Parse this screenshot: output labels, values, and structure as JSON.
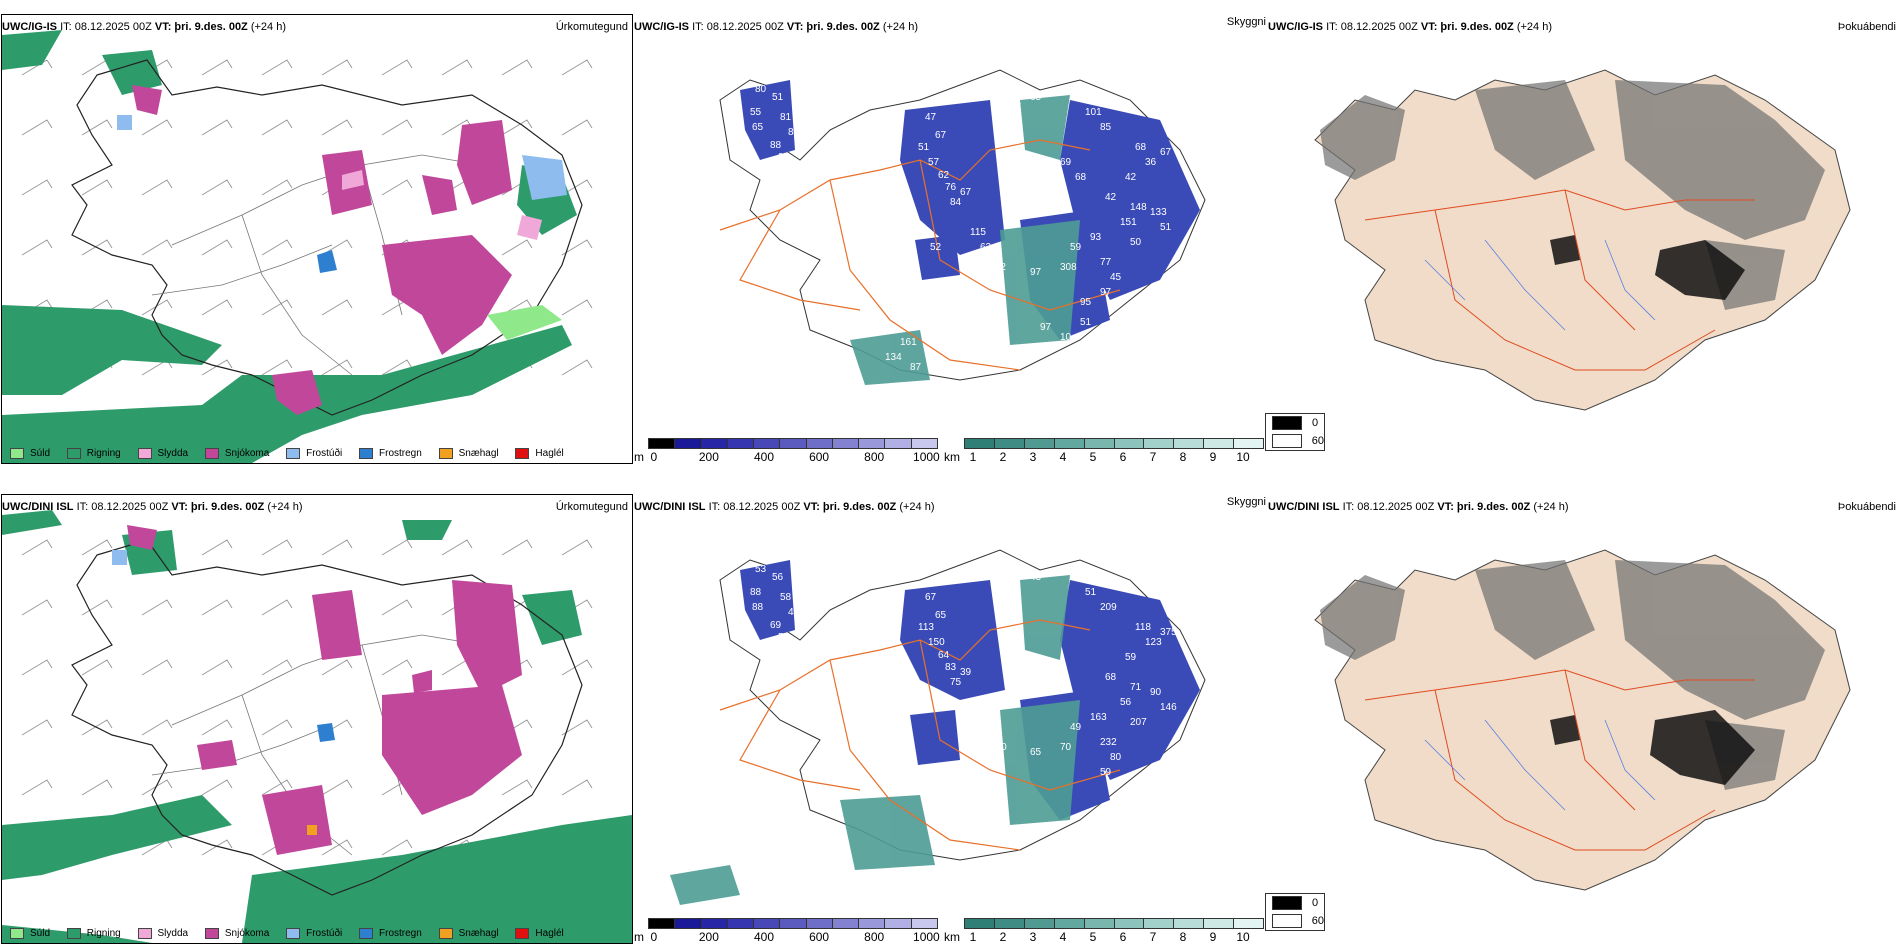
{
  "colors": {
    "rain": "#2e9b6b",
    "drizzle": "#8fe88a",
    "sleet": "#f0a8d8",
    "snow": "#c0479a",
    "frost_drizzle": "#8fbcee",
    "frost_rain": "#2f7fd0",
    "snow_pellets": "#f2a020",
    "hail": "#e01010",
    "road": "#e8702a",
    "cloud_dark": "#1a1a99",
    "cloud_green": "#4e9c95",
    "land_tan": "#f0dcc8"
  },
  "rows": [
    {
      "model": "UWC/IG-IS",
      "it_label": "IT: 08.12.2025 00Z",
      "vt_label": "VT: þri. 9.des. 00Z",
      "lead": "(+24 h)",
      "visibility_values": [
        "80",
        "51",
        "55",
        "65",
        "81",
        "82",
        "88",
        "90",
        "47",
        "67",
        "51",
        "57",
        "62",
        "76",
        "67",
        "84",
        "65",
        "17",
        "101",
        "85",
        "68",
        "67",
        "36",
        "42",
        "42",
        "148",
        "133",
        "151",
        "93",
        "50",
        "51",
        "115",
        "63",
        "59",
        "77",
        "112",
        "97",
        "308",
        "45",
        "97",
        "95",
        "52",
        "51",
        "134",
        "161",
        "87",
        "10",
        "97",
        "57",
        "69",
        "68"
      ]
    },
    {
      "model": "UWC/DINI ISL",
      "it_label": "IT: 08.12.2025 00Z",
      "vt_label": "VT: þri. 9.des. 00Z",
      "lead": "(+24 h)",
      "visibility_values": [
        "53",
        "56",
        "88",
        "88",
        "58",
        "45",
        "69",
        "54",
        "67",
        "65",
        "113",
        "150",
        "64",
        "83",
        "39",
        "75",
        "43",
        "46",
        "51",
        "209",
        "118",
        "375",
        "123",
        "59",
        "68",
        "71",
        "90",
        "56",
        "163",
        "207",
        "146",
        "52",
        "140",
        "49",
        "232",
        "140",
        "65",
        "70",
        "80",
        "59"
      ]
    }
  ],
  "panel_titles": {
    "precip": "Úrkomutegund",
    "visibility": "Skyggni",
    "fog": "Þokuábendi"
  },
  "precip_legend": [
    {
      "label": "Súld",
      "color": "#8fe88a"
    },
    {
      "label": "Rigning",
      "color": "#2e9b6b"
    },
    {
      "label": "Slydda",
      "color": "#f0a8d8"
    },
    {
      "label": "Snjókoma",
      "color": "#c0479a"
    },
    {
      "label": "Frostúði",
      "color": "#8fbcee"
    },
    {
      "label": "Frostregn",
      "color": "#2f7fd0"
    },
    {
      "label": "Snæhagl",
      "color": "#f2a020"
    },
    {
      "label": "Haglél",
      "color": "#e01010"
    }
  ],
  "cloud_base_bar": {
    "unit": "m",
    "ticks": [
      "0",
      "200",
      "400",
      "600",
      "800",
      "1000"
    ],
    "colors": [
      "#000000",
      "#1a1a99",
      "#2626a6",
      "#3636b0",
      "#4848b8",
      "#5a5abf",
      "#6e6ec8",
      "#8282d0",
      "#9898da",
      "#b0b0e4",
      "#c8c8ee"
    ]
  },
  "visibility_bar": {
    "unit": "km",
    "ticks": [
      "1",
      "2",
      "3",
      "4",
      "5",
      "6",
      "7",
      "8",
      "9",
      "10"
    ],
    "colors": [
      "#2f7f77",
      "#3f8c84",
      "#509a92",
      "#63a8a0",
      "#78b6ae",
      "#8dc3bd",
      "#a2d0ca",
      "#b8ddd8",
      "#cee9e5",
      "#e4f4f2"
    ]
  },
  "fog_legend": [
    {
      "label": "0",
      "color": "#000000"
    },
    {
      "label": "60",
      "color": "#ffffff"
    }
  ]
}
